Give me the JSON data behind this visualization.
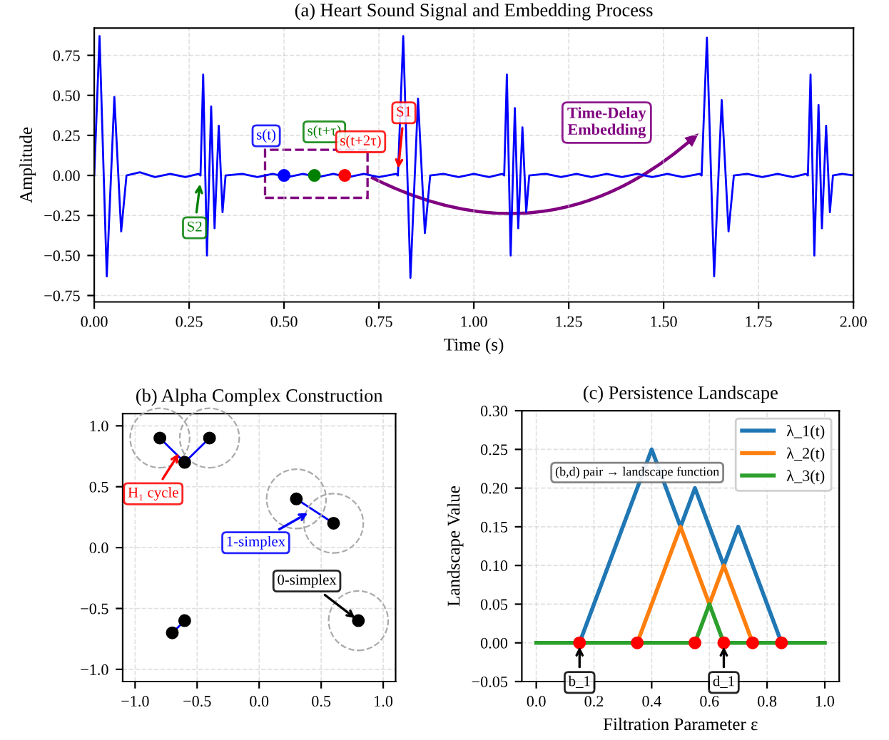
{
  "chart_data": [
    {
      "type": "line",
      "title": "(a) Heart Sound Signal and Embedding Process",
      "xlabel": "Time (s)",
      "ylabel": "Amplitude",
      "xlim": [
        0,
        2
      ],
      "ylim": [
        -0.79,
        0.92
      ],
      "xticks": [
        {
          "value": 0,
          "label": "0.00"
        },
        0.25,
        {
          "value": 0.5,
          "label": "0.50"
        },
        0.75,
        {
          "value": 1,
          "label": "1.00"
        },
        1.25,
        {
          "value": 1.5,
          "label": "1.50"
        },
        1.75,
        {
          "value": 2,
          "label": "2.00"
        }
      ],
      "yticks": [
        -0.75,
        {
          "value": -0.5,
          "label": "−0.50"
        },
        -0.25,
        {
          "value": 0,
          "label": "0.00"
        },
        0.25,
        {
          "value": 0.5,
          "label": "0.50"
        },
        0.75
      ],
      "grid": true,
      "series": [
        {
          "color": "#0000ff",
          "x": [
            0,
            0.014,
            0.033,
            0.053,
            0.071,
            0.085,
            0.12,
            0.16,
            0.2,
            0.24,
            0.275,
            0.28,
            0.287,
            0.297,
            0.308,
            0.317,
            0.328,
            0.338,
            0.346,
            0.39,
            0.43,
            0.47,
            0.51,
            0.55,
            0.59,
            0.63,
            0.67,
            0.71,
            0.75,
            0.795,
            0.8,
            0.814,
            0.833,
            0.853,
            0.871,
            0.885,
            0.92,
            0.96,
            1.0,
            1.04,
            1.075,
            1.08,
            1.087,
            1.097,
            1.108,
            1.117,
            1.128,
            1.138,
            1.146,
            1.19,
            1.23,
            1.27,
            1.31,
            1.35,
            1.39,
            1.43,
            1.47,
            1.51,
            1.55,
            1.595,
            1.6,
            1.614,
            1.633,
            1.653,
            1.671,
            1.685,
            1.72,
            1.76,
            1.8,
            1.84,
            1.875,
            1.88,
            1.887,
            1.897,
            1.908,
            1.917,
            1.928,
            1.938,
            1.946,
            1.97,
            2.0
          ],
          "values": [
            0,
            0.87,
            -0.63,
            0.49,
            -0.35,
            0.0,
            0.02,
            -0.01,
            0.01,
            -0.01,
            0.01,
            0,
            0.63,
            -0.5,
            0.43,
            -0.33,
            0.31,
            -0.23,
            0.0,
            0.01,
            -0.01,
            0.01,
            -0.01,
            0.01,
            -0.01,
            0.01,
            -0.01,
            0.01,
            -0.01,
            0.01,
            0,
            0.87,
            -0.64,
            0.48,
            -0.36,
            0.0,
            0.01,
            -0.01,
            0.01,
            -0.01,
            0.01,
            0,
            0.63,
            -0.5,
            0.42,
            -0.33,
            0.3,
            -0.23,
            0.0,
            0.01,
            -0.01,
            0.01,
            -0.01,
            0.01,
            -0.01,
            0.01,
            -0.01,
            0.01,
            -0.01,
            0.01,
            0,
            0.86,
            -0.63,
            0.47,
            -0.35,
            0.0,
            0.01,
            -0.01,
            0.01,
            -0.01,
            0.01,
            0,
            0.63,
            -0.5,
            0.44,
            -0.33,
            0.31,
            -0.23,
            0.0,
            0.01,
            0.0
          ]
        },
        {
          "type": "scatter",
          "color": "#0000ff",
          "x": [
            0.5
          ],
          "values": [
            0.0
          ]
        },
        {
          "type": "scatter",
          "color": "#008000",
          "x": [
            0.58
          ],
          "values": [
            0.0
          ]
        },
        {
          "type": "scatter",
          "color": "#ff0000",
          "x": [
            0.66
          ],
          "values": [
            0.0
          ]
        }
      ],
      "annotations": [
        {
          "text": "s(t)",
          "x": 0.5,
          "y": 0.0
        },
        {
          "text": "s(t+τ)",
          "x": 0.58,
          "y": 0.0
        },
        {
          "text": "s(t+2τ)",
          "x": 0.66,
          "y": 0.0
        },
        {
          "text": "S1",
          "x": 0.8,
          "y": 0.02
        },
        {
          "text": "S2",
          "x": 0.28,
          "y": -0.03
        },
        "Time-Delay\nEmbedding"
      ]
    },
    {
      "type": "scatter",
      "title": "(b) Alpha Complex Construction",
      "xlim": [
        -1.1,
        1.1
      ],
      "ylim": [
        -1.1,
        1.1
      ],
      "xticks": [
        {
          "value": -1,
          "label": "−1.0"
        },
        -0.5,
        {
          "value": 0,
          "label": "0.0"
        },
        0.5,
        {
          "value": 1,
          "label": "1.0"
        }
      ],
      "yticks": [
        {
          "value": -1,
          "label": "−1.0"
        },
        -0.5,
        {
          "value": 0,
          "label": "0.0"
        },
        0.5,
        {
          "value": 1,
          "label": "1.0"
        }
      ],
      "grid": true,
      "series": [
        {
          "type": "bubble",
          "color": "#aaaaaa",
          "x": [
            -0.8,
            -0.4,
            0.3,
            0.6,
            0.8
          ],
          "values": [
            0.9,
            0.9,
            0.4,
            0.2,
            -0.6
          ],
          "sizes": [
            1,
            1,
            1,
            1,
            1
          ]
        },
        {
          "type": "line",
          "color": "#0000ff",
          "x": [
            -0.8,
            -0.6,
            -0.4
          ],
          "values": [
            0.9,
            0.7,
            0.9
          ]
        },
        {
          "type": "line",
          "color": "#0000ff",
          "x": [
            0.3,
            0.6
          ],
          "values": [
            0.4,
            0.2
          ]
        },
        {
          "type": "line",
          "color": "#0000ff",
          "x": [
            -0.7,
            -0.6
          ],
          "values": [
            -0.7,
            -0.6
          ]
        },
        {
          "color": "#000000",
          "x": [
            -0.8,
            -0.6,
            -0.4,
            0.3,
            0.6,
            0.8,
            -0.7,
            -0.6
          ],
          "values": [
            0.9,
            0.7,
            0.9,
            0.4,
            0.2,
            -0.6,
            -0.7,
            -0.6
          ]
        }
      ],
      "annotations": [
        {
          "text": "H₁ cycle",
          "x": -0.63,
          "y": 0.8
        },
        {
          "text": "1-simplex",
          "x": 0.42,
          "y": 0.3
        },
        {
          "text": "0-simplex",
          "x": 0.8,
          "y": -0.6
        }
      ]
    },
    {
      "type": "line",
      "title": "(c) Persistence Landscape",
      "xlabel": "Filtration Parameter ε",
      "ylabel": "Landscape Value",
      "xlim": [
        -0.05,
        1.05
      ],
      "ylim": [
        -0.05,
        0.3
      ],
      "xticks": [
        {
          "value": 0,
          "label": "0.0"
        },
        0.2,
        0.4,
        0.6,
        0.8,
        {
          "value": 1,
          "label": "1.0"
        }
      ],
      "yticks": [
        {
          "value": -0.05,
          "label": "−0.05"
        },
        {
          "value": 0,
          "label": "0.00"
        },
        0.05,
        {
          "value": 0.1,
          "label": "0.10"
        },
        0.15,
        {
          "value": 0.2,
          "label": "0.20"
        },
        0.25,
        {
          "value": 0.3,
          "label": "0.30"
        }
      ],
      "grid": true,
      "legend": "top right",
      "series": [
        {
          "name": "λ_1(t)",
          "color": "#1f77b4",
          "x": [
            0.15,
            0.4,
            0.5,
            0.55,
            0.65,
            0.7,
            0.85
          ],
          "values": [
            0,
            0.25,
            0.15,
            0.2,
            0.1,
            0.15,
            0
          ]
        },
        {
          "name": "λ_2(t)",
          "color": "#ff7f0e",
          "x": [
            0.35,
            0.5,
            0.6,
            0.65,
            0.75
          ],
          "values": [
            0,
            0.15,
            0.05,
            0.1,
            0
          ]
        },
        {
          "name": "λ_3(t)",
          "color": "#2ca02c",
          "x": [
            0,
            0.55,
            0.6,
            0.65,
            1.0
          ],
          "values": [
            0,
            0,
            0.05,
            0,
            0
          ]
        },
        {
          "type": "scatter",
          "color": "#ff0000",
          "x": [
            0.15,
            0.35,
            0.55,
            0.65,
            0.75,
            0.85
          ],
          "values": [
            0,
            0,
            0,
            0,
            0,
            0
          ]
        }
      ],
      "annotations": [
        {
          "text": "b_1",
          "x": 0.15,
          "y": 0
        },
        {
          "text": "d_1",
          "x": 0.65,
          "y": 0
        },
        "(b,d) pair → landscape function"
      ]
    }
  ]
}
